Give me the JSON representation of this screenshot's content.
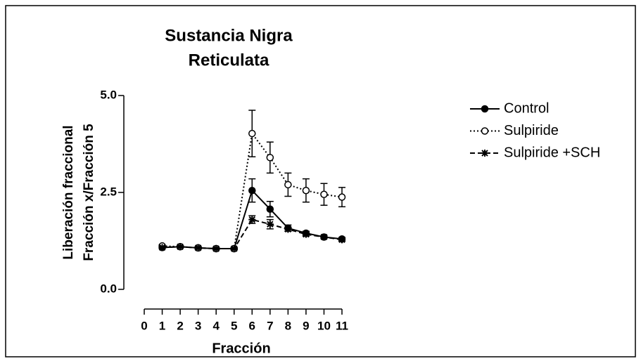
{
  "chart_data": {
    "type": "line",
    "title": [
      "Sustancia Nigra",
      "Reticulata"
    ],
    "y_label": [
      "Liberación fraccional",
      "Fracción x/Fracción 5"
    ],
    "x_label": "Fracción",
    "x": [
      1,
      2,
      3,
      4,
      5,
      6,
      7,
      8,
      9,
      10,
      11
    ],
    "xlim": [
      0,
      11
    ],
    "xticks": [
      0,
      1,
      2,
      3,
      4,
      5,
      6,
      7,
      8,
      9,
      10,
      11
    ],
    "ylim": [
      0,
      5
    ],
    "yticks": [
      {
        "value": 0,
        "label": "0.0"
      },
      {
        "value": 2.5,
        "label": "2.5"
      },
      {
        "value": 5,
        "label": "5.0"
      }
    ],
    "legend": "right",
    "series": [
      {
        "name": "Control",
        "color": "#000000",
        "line_style": "solid",
        "marker": "filled-circle",
        "values": [
          1.08,
          1.1,
          1.07,
          1.05,
          1.05,
          2.55,
          2.07,
          1.58,
          1.45,
          1.35,
          1.3
        ],
        "errors": [
          0.03,
          0.03,
          0.03,
          0.03,
          0.03,
          0.3,
          0.2,
          0.08,
          0.05,
          0.04,
          0.04
        ]
      },
      {
        "name": "Sulpiride",
        "color": "#000000",
        "line_style": "dotted",
        "marker": "open-circle",
        "values": [
          1.12,
          1.1,
          1.07,
          1.05,
          1.05,
          4.02,
          3.4,
          2.7,
          2.55,
          2.45,
          2.38
        ],
        "errors": [
          0.03,
          0.03,
          0.03,
          0.03,
          0.03,
          0.6,
          0.4,
          0.3,
          0.3,
          0.28,
          0.25
        ]
      },
      {
        "name": "Sulpiride +SCH",
        "color": "#000000",
        "line_style": "dashed",
        "marker": "star",
        "values": [
          1.08,
          1.1,
          1.07,
          1.05,
          1.05,
          1.8,
          1.68,
          1.55,
          1.42,
          1.35,
          1.28
        ],
        "errors": [
          0.03,
          0.03,
          0.03,
          0.03,
          0.03,
          0.1,
          0.12,
          0.05,
          0.05,
          0.04,
          0.04
        ]
      }
    ]
  }
}
